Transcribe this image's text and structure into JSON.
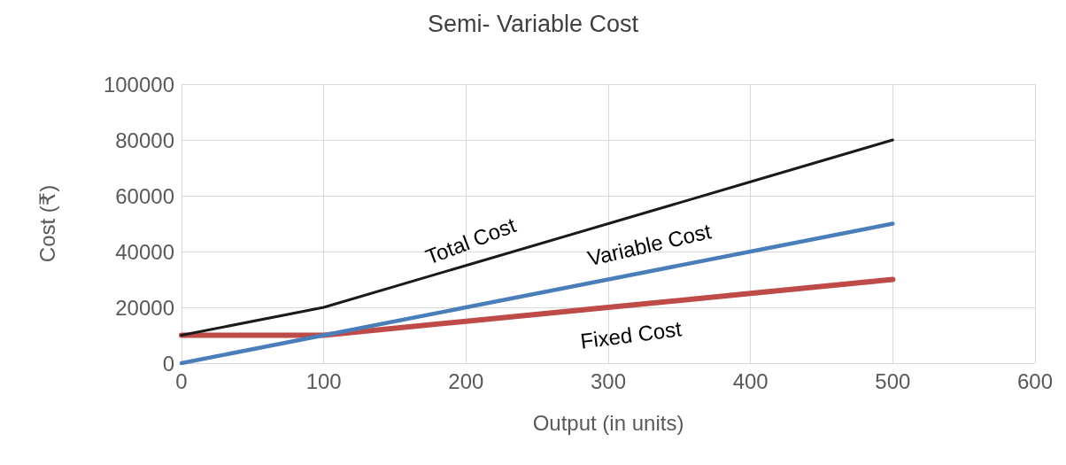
{
  "chart_data": {
    "type": "line",
    "title": "Semi- Variable Cost",
    "xlabel": "Output (in units)",
    "ylabel": "Cost (₹)",
    "x": [
      0,
      100,
      200,
      300,
      400,
      500
    ],
    "series": [
      {
        "name": "Total Cost",
        "color": "#1a1a1a",
        "values": [
          10000,
          20000,
          35000,
          50000,
          65000,
          80000
        ]
      },
      {
        "name": "Variable Cost",
        "color": "#4a7ebb",
        "values": [
          0,
          10000,
          20000,
          30000,
          40000,
          50000
        ]
      },
      {
        "name": "Fixed Cost",
        "color": "#be4b48",
        "values": [
          10000,
          10000,
          15000,
          20000,
          25000,
          30000
        ]
      }
    ],
    "xlim": [
      0,
      600
    ],
    "xticks": [
      0,
      100,
      200,
      300,
      400,
      500,
      600
    ],
    "ylim": [
      0,
      100000
    ],
    "yticks": [
      0,
      20000,
      40000,
      60000,
      80000,
      100000
    ],
    "grid": true,
    "legend": false,
    "marker": "none",
    "line_style": "solid"
  }
}
